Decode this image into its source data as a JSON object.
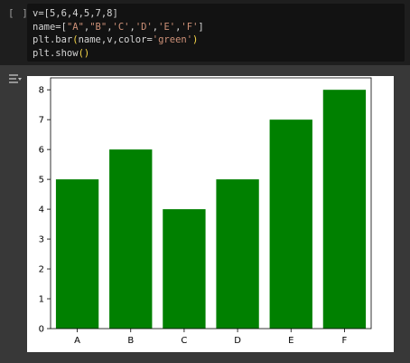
{
  "input_cell": {
    "run_indicator": "[ ]",
    "code_lines": [
      "v=[5,6,4,5,7,8]",
      "name=[\"A\",\"B\",'C','D','E','F']",
      "plt.bar(name,v,color='green')",
      "plt.show()"
    ]
  },
  "output_cell": {
    "icon": "output-toggle-icon"
  },
  "chart_data": {
    "type": "bar",
    "categories": [
      "A",
      "B",
      "C",
      "D",
      "E",
      "F"
    ],
    "values": [
      5,
      6,
      4,
      5,
      7,
      8
    ],
    "color": "#008000",
    "ylim": [
      0,
      8.4
    ],
    "yticks": [
      0,
      1,
      2,
      3,
      4,
      5,
      6,
      7,
      8
    ],
    "grid": false
  }
}
